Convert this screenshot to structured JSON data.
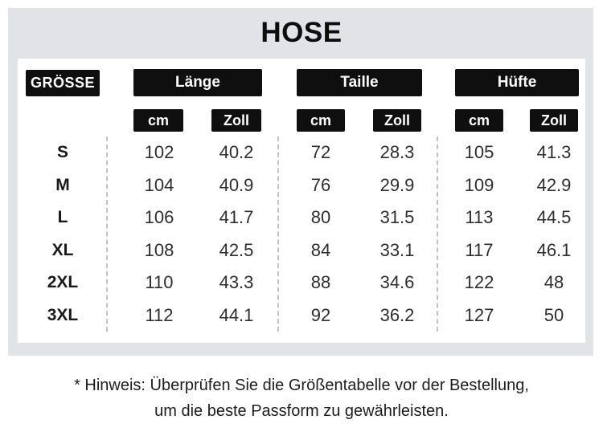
{
  "page": {
    "title": "HOSE"
  },
  "size_chart": {
    "header": {
      "size": "GRÖSSE",
      "groups": [
        "Länge",
        "Taille",
        "Hüfte"
      ],
      "unit_cm": "cm",
      "unit_zoll": "Zoll"
    }
  },
  "chart_data": {
    "type": "table",
    "title": "HOSE",
    "columns": [
      "GRÖSSE",
      "Länge cm",
      "Länge Zoll",
      "Taille cm",
      "Taille Zoll",
      "Hüfte cm",
      "Hüfte Zoll"
    ],
    "rows": [
      [
        "S",
        "102",
        "40.2",
        "72",
        "28.3",
        "105",
        "41.3"
      ],
      [
        "M",
        "104",
        "40.9",
        "76",
        "29.9",
        "109",
        "42.9"
      ],
      [
        "L",
        "106",
        "41.7",
        "80",
        "31.5",
        "113",
        "44.5"
      ],
      [
        "XL",
        "108",
        "42.5",
        "84",
        "33.1",
        "117",
        "46.1"
      ],
      [
        "2XL",
        "110",
        "43.3",
        "88",
        "34.6",
        "122",
        "48"
      ],
      [
        "3XL",
        "112",
        "44.1",
        "92",
        "36.2",
        "127",
        "50"
      ]
    ],
    "layout": {
      "group_separators": "dashed-vertical",
      "header_style": "black-pills-white-text"
    }
  },
  "note": {
    "line1": "* Hinweis: Überprüfen Sie die Größentabelle vor der Bestellung,",
    "line2": "um die beste Passform zu gewährleisten."
  },
  "colors": {
    "band_background": "#e2e3e7",
    "sheet_background": "#ffffff",
    "pill_background": "#0f0f0f",
    "pill_text": "#ffffff",
    "body_text": "#2e2e2e",
    "dashed_separator": "#c2c2c4"
  }
}
